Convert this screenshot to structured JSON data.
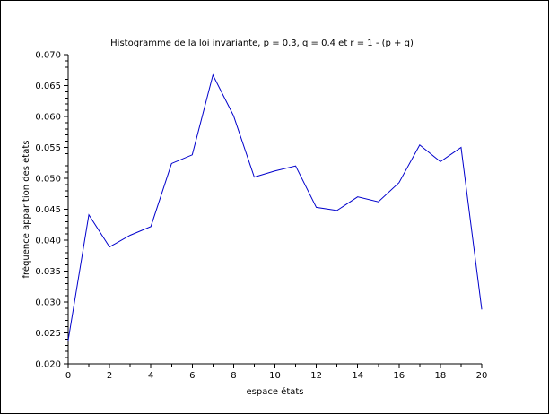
{
  "chart_data": {
    "type": "line",
    "title": "Histogramme de la loi invariante, p = 0.3, q = 0.4 et r = 1 - (p + q)",
    "xlabel": "espace états",
    "ylabel": "fréquence apparition des états",
    "xlim": [
      0,
      20
    ],
    "ylim": [
      0.02,
      0.07
    ],
    "x_ticks": [
      0,
      2,
      4,
      6,
      8,
      10,
      12,
      14,
      16,
      18,
      20
    ],
    "y_ticks": [
      "0.020",
      "0.025",
      "0.030",
      "0.035",
      "0.040",
      "0.045",
      "0.050",
      "0.055",
      "0.060",
      "0.065",
      "0.070"
    ],
    "grid": false,
    "legend": "none",
    "series": [
      {
        "color": "#0000cc",
        "x": [
          0,
          1,
          2,
          3,
          4,
          5,
          6,
          7,
          8,
          9,
          10,
          11,
          12,
          13,
          14,
          15,
          16,
          17,
          18,
          19,
          20
        ],
        "values": [
          0.0238,
          0.0441,
          0.0389,
          0.0408,
          0.0422,
          0.0524,
          0.0538,
          0.0667,
          0.0601,
          0.0502,
          0.0512,
          0.052,
          0.0453,
          0.0448,
          0.047,
          0.0462,
          0.0493,
          0.0554,
          0.0527,
          0.055,
          0.0288
        ]
      }
    ]
  }
}
